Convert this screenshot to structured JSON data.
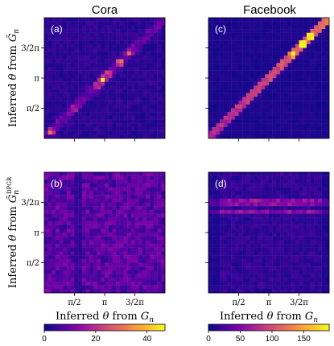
{
  "chart_data": [
    {
      "type": "heatmap",
      "panel_label": "(a)",
      "column_title": "Cora",
      "colorbar_group": "cora",
      "ylabel_parts": [
        "Inferred ",
        "θ",
        " from ",
        "Ĝ",
        "n"
      ],
      "ylabel": "Inferred θ from Ĝ_n",
      "xlabel": "",
      "y_ticks": [
        "π/2",
        "π",
        "3/2π"
      ],
      "x_ticks": [],
      "pattern": "diagonal",
      "grid": "32x32",
      "diagonal_peaks": [
        {
          "position_rad": 0.35,
          "value": 30
        },
        {
          "position_rad": 1.55,
          "value": 18
        },
        {
          "position_rad": 2.75,
          "value": 24
        },
        {
          "position_rad": 3.05,
          "value": 46
        },
        {
          "position_rad": 3.35,
          "value": 28
        },
        {
          "position_rad": 3.95,
          "value": 38
        },
        {
          "position_rad": 4.45,
          "value": 26
        }
      ],
      "background_level": 3
    },
    {
      "type": "heatmap",
      "panel_label": "(c)",
      "column_title": "Facebook",
      "colorbar_group": "facebook",
      "ylabel": "",
      "xlabel": "",
      "y_ticks": [],
      "x_ticks": [],
      "pattern": "diagonal",
      "grid": "32x32",
      "diagonal_peaks": [
        {
          "position_rad": 4.9,
          "value": 185
        },
        {
          "position_rad": 5.3,
          "value": 160
        },
        {
          "position_rad": 4.4,
          "value": 140
        }
      ],
      "background_level": 6
    },
    {
      "type": "heatmap",
      "panel_label": "(b)",
      "column_title": "",
      "colorbar_group": "cora",
      "ylabel_parts": [
        "Inferred ",
        "θ",
        " from ",
        "Ĝ",
        "n",
        "DPGR"
      ],
      "ylabel": "Inferred θ from Ĝ_n^DPGR",
      "xlabel_parts": [
        "Inferred ",
        "θ",
        " from ",
        "G",
        "n"
      ],
      "xlabel": "Inferred θ from G_n",
      "y_ticks": [
        "π/2",
        "π",
        "3/2π"
      ],
      "x_ticks": [
        "π/2",
        "π",
        "3/2π"
      ],
      "pattern": "uniform",
      "grid": "32x32",
      "background_level": 8
    },
    {
      "type": "heatmap",
      "panel_label": "(d)",
      "column_title": "",
      "colorbar_group": "facebook",
      "ylabel": "",
      "xlabel_parts": [
        "Inferred ",
        "θ",
        " from ",
        "G",
        "n"
      ],
      "xlabel": "Inferred θ from G_n",
      "y_ticks": [],
      "x_ticks": [
        "π/2",
        "π",
        "3/2π"
      ],
      "pattern": "horizontal_bands",
      "grid": "32x32",
      "band_rows_rad": [
        4.85,
        4.55,
        4.25
      ],
      "band_value": 45,
      "background_level": 14
    }
  ],
  "colorbars": {
    "cora": {
      "min": 0,
      "max": 47,
      "ticks": [
        "0",
        "20",
        "40"
      ],
      "tick_values": [
        0,
        20,
        40
      ],
      "colormap": "plasma"
    },
    "facebook": {
      "min": 0,
      "max": 190,
      "ticks": [
        "0",
        "50",
        "100",
        "150"
      ],
      "tick_values": [
        0,
        50,
        100,
        150
      ],
      "colormap": "plasma"
    }
  },
  "headers": {
    "left": "Cora",
    "right": "Facebook"
  }
}
